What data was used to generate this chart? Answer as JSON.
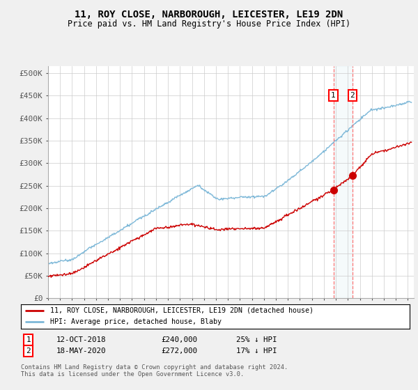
{
  "title": "11, ROY CLOSE, NARBOROUGH, LEICESTER, LE19 2DN",
  "subtitle": "Price paid vs. HM Land Registry's House Price Index (HPI)",
  "ylabel_ticks": [
    "£0",
    "£50K",
    "£100K",
    "£150K",
    "£200K",
    "£250K",
    "£300K",
    "£350K",
    "£400K",
    "£450K",
    "£500K"
  ],
  "ytick_values": [
    0,
    50000,
    100000,
    150000,
    200000,
    250000,
    300000,
    350000,
    400000,
    450000,
    500000
  ],
  "xlim_start": 1995.0,
  "xlim_end": 2025.5,
  "ylim": [
    0,
    515000
  ],
  "hpi_color": "#7db8d8",
  "price_color": "#cc0000",
  "marker1_date": 2018.79,
  "marker2_date": 2020.38,
  "marker1_price": 240000,
  "marker2_price": 272000,
  "marker1_label": "12-OCT-2018",
  "marker2_label": "18-MAY-2020",
  "marker1_pct": "25% ↓ HPI",
  "marker2_pct": "17% ↓ HPI",
  "legend_line1": "11, ROY CLOSE, NARBOROUGH, LEICESTER, LE19 2DN (detached house)",
  "legend_line2": "HPI: Average price, detached house, Blaby",
  "footnote": "Contains HM Land Registry data © Crown copyright and database right 2024.\nThis data is licensed under the Open Government Licence v3.0.",
  "background_color": "#f0f0f0",
  "plot_bg_color": "#ffffff"
}
